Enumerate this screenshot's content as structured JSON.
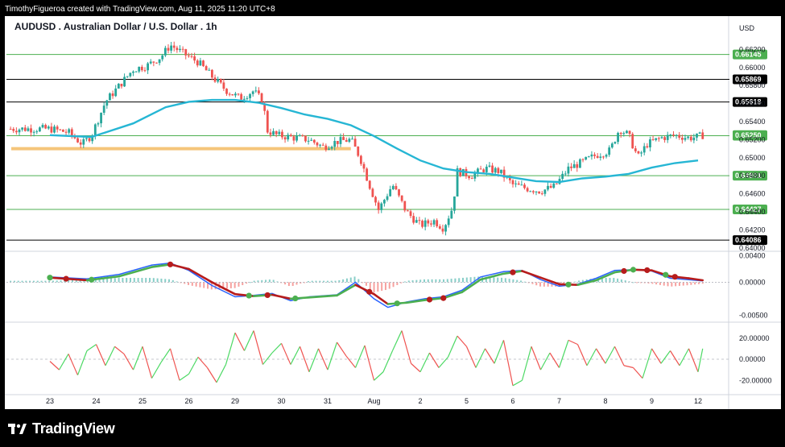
{
  "header": {
    "attribution": "TimothyFigueroa created with TradingView.com, Aug 11, 2025 11:20 UTC+8"
  },
  "brand": {
    "name": "TradingView",
    "logo": "tradingview-logo-icon"
  },
  "colors": {
    "candle_up": "#26a69a",
    "candle_down": "#ef5350",
    "ema": "#26b6d4",
    "hline_green": "#4caf50",
    "hline_black": "#000000",
    "support_zone": "#f5c57a",
    "macd_fast": "#2962ff",
    "macd_signal_up": "#4caf50",
    "macd_signal_down": "#b71c1c",
    "osc_up": "#4cd964",
    "osc_down": "#ef5350"
  },
  "chart_data": [
    {
      "type": "candlestick",
      "title": "AUDUSD . Australian Dollar / U.S. Dollar . 1h",
      "currency": "USD",
      "y_ticks": [
        "0.66200",
        "0.66000",
        "0.65800",
        "0.65600",
        "0.65400",
        "0.65200",
        "0.65000",
        "0.64800",
        "0.64600",
        "0.64400",
        "0.64200",
        "0.64000"
      ],
      "ylim": [
        0.6398,
        0.6632
      ],
      "x_ticks": [
        "23",
        "24",
        "25",
        "26",
        "29",
        "30",
        "31",
        "Aug",
        "2",
        "5",
        "6",
        "7",
        "8",
        "9",
        "12"
      ],
      "horizontal_levels": [
        {
          "value": 0.66145,
          "label": "0.66145",
          "style": "green"
        },
        {
          "value": 0.65869,
          "label": "0.65869",
          "style": "black"
        },
        {
          "value": 0.65618,
          "label": "0.65618",
          "style": "black"
        },
        {
          "value": 0.65244,
          "label": "0.65244",
          "style": "green"
        },
        {
          "value": 0.64801,
          "label": "0.64801",
          "style": "green"
        },
        {
          "value": 0.64427,
          "label": "0.64427",
          "style": "green"
        },
        {
          "value": 0.64086,
          "label": "0.64086",
          "style": "black"
        }
      ],
      "last_price": {
        "value": 0.6525,
        "label": "0.65250"
      },
      "support_zone": {
        "value": 0.651,
        "from_x": 0.0,
        "to_x": 6.5
      },
      "price_path": [
        [
          0.0,
          0.6532
        ],
        [
          0.4,
          0.6528
        ],
        [
          0.7,
          0.6515
        ],
        [
          0.9,
          0.6525
        ],
        [
          1.2,
          0.6562
        ],
        [
          1.5,
          0.658
        ],
        [
          1.8,
          0.6598
        ],
        [
          2.1,
          0.6602
        ],
        [
          2.4,
          0.6612
        ],
        [
          2.6,
          0.6625
        ],
        [
          2.9,
          0.6615
        ],
        [
          3.2,
          0.6606
        ],
        [
          3.5,
          0.659
        ],
        [
          3.8,
          0.6575
        ],
        [
          4.1,
          0.6566
        ],
        [
          4.4,
          0.6574
        ],
        [
          4.6,
          0.6562
        ],
        [
          4.7,
          0.653
        ],
        [
          4.9,
          0.6525
        ],
        [
          5.3,
          0.6522
        ],
        [
          5.6,
          0.652
        ],
        [
          5.9,
          0.6512
        ],
        [
          6.2,
          0.6518
        ],
        [
          6.5,
          0.652
        ],
        [
          6.7,
          0.65
        ],
        [
          6.9,
          0.647
        ],
        [
          7.1,
          0.6442
        ],
        [
          7.4,
          0.647
        ],
        [
          7.7,
          0.644
        ],
        [
          8.0,
          0.6425
        ],
        [
          8.3,
          0.643
        ],
        [
          8.5,
          0.6422
        ],
        [
          8.7,
          0.6445
        ],
        [
          8.8,
          0.6485
        ],
        [
          9.1,
          0.648
        ],
        [
          9.4,
          0.6488
        ],
        [
          9.7,
          0.6485
        ],
        [
          10.0,
          0.647
        ],
        [
          10.3,
          0.6466
        ],
        [
          10.6,
          0.6463
        ],
        [
          10.9,
          0.6468
        ],
        [
          11.2,
          0.6488
        ],
        [
          11.5,
          0.6495
        ],
        [
          11.8,
          0.6503
        ],
        [
          12.1,
          0.6508
        ],
        [
          12.3,
          0.6532
        ],
        [
          12.5,
          0.6525
        ],
        [
          12.7,
          0.65
        ],
        [
          12.9,
          0.6515
        ],
        [
          13.2,
          0.6522
        ],
        [
          13.5,
          0.6525
        ],
        [
          13.8,
          0.6522
        ],
        [
          14.0,
          0.6523
        ],
        [
          14.1,
          0.6525
        ]
      ],
      "ema_path": [
        [
          0.0,
          0.6525
        ],
        [
          0.9,
          0.6523
        ],
        [
          1.8,
          0.6538
        ],
        [
          2.5,
          0.6556
        ],
        [
          3.0,
          0.6562
        ],
        [
          3.5,
          0.6564
        ],
        [
          4.0,
          0.6564
        ],
        [
          4.5,
          0.6561
        ],
        [
          5.0,
          0.6555
        ],
        [
          5.5,
          0.6548
        ],
        [
          6.0,
          0.6543
        ],
        [
          6.5,
          0.6536
        ],
        [
          7.0,
          0.6524
        ],
        [
          7.5,
          0.651
        ],
        [
          8.0,
          0.6497
        ],
        [
          8.5,
          0.6488
        ],
        [
          9.0,
          0.6484
        ],
        [
          9.5,
          0.6482
        ],
        [
          10.0,
          0.6478
        ],
        [
          10.5,
          0.6474
        ],
        [
          11.0,
          0.6473
        ],
        [
          11.5,
          0.6477
        ],
        [
          12.0,
          0.6479
        ],
        [
          12.5,
          0.6482
        ],
        [
          13.0,
          0.6489
        ],
        [
          13.5,
          0.6494
        ],
        [
          14.0,
          0.6497
        ]
      ]
    },
    {
      "type": "macd",
      "y_ticks": [
        "0.00400",
        "0.00000",
        "-0.00500"
      ],
      "ylim": [
        -0.0058,
        0.0042
      ],
      "fast_path": [
        [
          0.0,
          0.0008
        ],
        [
          0.8,
          0.0005
        ],
        [
          1.5,
          0.0012
        ],
        [
          2.2,
          0.0026
        ],
        [
          2.6,
          0.0029
        ],
        [
          3.0,
          0.0018
        ],
        [
          3.5,
          -0.0005
        ],
        [
          4.0,
          -0.0022
        ],
        [
          4.4,
          -0.002
        ],
        [
          4.8,
          -0.0017
        ],
        [
          5.2,
          -0.0028
        ],
        [
          5.6,
          -0.0022
        ],
        [
          6.2,
          -0.0019
        ],
        [
          6.6,
          0.0
        ],
        [
          7.0,
          -0.0025
        ],
        [
          7.3,
          -0.0038
        ],
        [
          7.7,
          -0.003
        ],
        [
          8.1,
          -0.0025
        ],
        [
          8.5,
          -0.0022
        ],
        [
          8.9,
          -0.0012
        ],
        [
          9.3,
          0.0008
        ],
        [
          9.8,
          0.0016
        ],
        [
          10.2,
          0.0018
        ],
        [
          10.6,
          0.0004
        ],
        [
          11.0,
          -0.0006
        ],
        [
          11.4,
          -0.0003
        ],
        [
          11.8,
          0.0006
        ],
        [
          12.2,
          0.0018
        ],
        [
          12.6,
          0.0019
        ],
        [
          13.0,
          0.0017
        ],
        [
          13.4,
          0.0006
        ],
        [
          13.8,
          0.0004
        ],
        [
          14.1,
          0.0002
        ]
      ],
      "signal_path": [
        [
          0.0,
          0.0007
        ],
        [
          0.8,
          0.0003
        ],
        [
          1.5,
          0.0009
        ],
        [
          2.2,
          0.0023
        ],
        [
          2.6,
          0.0027
        ],
        [
          3.0,
          0.002
        ],
        [
          3.5,
          0.0
        ],
        [
          4.0,
          -0.0018
        ],
        [
          4.4,
          -0.0021
        ],
        [
          4.8,
          -0.0019
        ],
        [
          5.2,
          -0.0025
        ],
        [
          5.6,
          -0.0023
        ],
        [
          6.2,
          -0.002
        ],
        [
          6.6,
          -0.0004
        ],
        [
          7.0,
          -0.0018
        ],
        [
          7.3,
          -0.0033
        ],
        [
          7.7,
          -0.0031
        ],
        [
          8.1,
          -0.0027
        ],
        [
          8.5,
          -0.0024
        ],
        [
          8.9,
          -0.0015
        ],
        [
          9.3,
          0.0004
        ],
        [
          9.8,
          0.0013
        ],
        [
          10.2,
          0.0017
        ],
        [
          10.6,
          0.0007
        ],
        [
          11.0,
          -0.0003
        ],
        [
          11.4,
          -0.0004
        ],
        [
          11.8,
          0.0003
        ],
        [
          12.2,
          0.0015
        ],
        [
          12.6,
          0.0019
        ],
        [
          13.0,
          0.0018
        ],
        [
          13.4,
          0.0009
        ],
        [
          13.8,
          0.0006
        ],
        [
          14.1,
          0.0003
        ]
      ],
      "cross_markers": [
        {
          "x": 0.0,
          "dir": "up"
        },
        {
          "x": 0.35,
          "dir": "down"
        },
        {
          "x": 0.9,
          "dir": "up"
        },
        {
          "x": 2.6,
          "dir": "down"
        },
        {
          "x": 4.3,
          "dir": "up"
        },
        {
          "x": 4.7,
          "dir": "down"
        },
        {
          "x": 5.3,
          "dir": "up"
        },
        {
          "x": 6.9,
          "dir": "down"
        },
        {
          "x": 7.5,
          "dir": "up"
        },
        {
          "x": 8.2,
          "dir": "down"
        },
        {
          "x": 8.5,
          "dir": "down"
        },
        {
          "x": 10.0,
          "dir": "down"
        },
        {
          "x": 11.2,
          "dir": "up"
        },
        {
          "x": 12.4,
          "dir": "down"
        },
        {
          "x": 12.6,
          "dir": "up"
        },
        {
          "x": 12.9,
          "dir": "down"
        },
        {
          "x": 13.3,
          "dir": "up"
        },
        {
          "x": 13.5,
          "dir": "down"
        }
      ]
    },
    {
      "type": "oscillator",
      "y_ticks": [
        "20.00000",
        "0.00000",
        "-20.00000"
      ],
      "ylim": [
        -32,
        32
      ],
      "zero_line": 0,
      "path": [
        [
          0.0,
          -2
        ],
        [
          0.2,
          -10
        ],
        [
          0.4,
          5
        ],
        [
          0.6,
          -15
        ],
        [
          0.8,
          8
        ],
        [
          1.0,
          14
        ],
        [
          1.2,
          -6
        ],
        [
          1.4,
          12
        ],
        [
          1.6,
          5
        ],
        [
          1.8,
          -10
        ],
        [
          2.0,
          12
        ],
        [
          2.2,
          -18
        ],
        [
          2.4,
          -3
        ],
        [
          2.6,
          10
        ],
        [
          2.8,
          -20
        ],
        [
          3.0,
          -14
        ],
        [
          3.2,
          2
        ],
        [
          3.4,
          -8
        ],
        [
          3.6,
          -22
        ],
        [
          3.8,
          -5
        ],
        [
          4.0,
          25
        ],
        [
          4.2,
          8
        ],
        [
          4.4,
          27
        ],
        [
          4.6,
          -5
        ],
        [
          4.8,
          6
        ],
        [
          5.0,
          15
        ],
        [
          5.2,
          -5
        ],
        [
          5.4,
          12
        ],
        [
          5.6,
          -12
        ],
        [
          5.8,
          10
        ],
        [
          6.0,
          -10
        ],
        [
          6.2,
          16
        ],
        [
          6.4,
          3
        ],
        [
          6.6,
          -8
        ],
        [
          6.8,
          13
        ],
        [
          7.0,
          -20
        ],
        [
          7.2,
          -12
        ],
        [
          7.4,
          8
        ],
        [
          7.6,
          27
        ],
        [
          7.8,
          -4
        ],
        [
          8.0,
          -12
        ],
        [
          8.2,
          6
        ],
        [
          8.4,
          -8
        ],
        [
          8.6,
          2
        ],
        [
          8.8,
          22
        ],
        [
          9.0,
          12
        ],
        [
          9.2,
          -8
        ],
        [
          9.4,
          10
        ],
        [
          9.6,
          -4
        ],
        [
          9.8,
          18
        ],
        [
          10.0,
          -25
        ],
        [
          10.2,
          -20
        ],
        [
          10.4,
          12
        ],
        [
          10.6,
          -10
        ],
        [
          10.8,
          6
        ],
        [
          11.0,
          -8
        ],
        [
          11.2,
          18
        ],
        [
          11.4,
          14
        ],
        [
          11.6,
          -6
        ],
        [
          11.8,
          10
        ],
        [
          12.0,
          -4
        ],
        [
          12.2,
          12
        ],
        [
          12.4,
          -6
        ],
        [
          12.6,
          -8
        ],
        [
          12.8,
          -18
        ],
        [
          13.0,
          10
        ],
        [
          13.2,
          -4
        ],
        [
          13.4,
          8
        ],
        [
          13.6,
          -6
        ],
        [
          13.8,
          10
        ],
        [
          14.0,
          -12
        ],
        [
          14.1,
          10
        ]
      ]
    }
  ]
}
